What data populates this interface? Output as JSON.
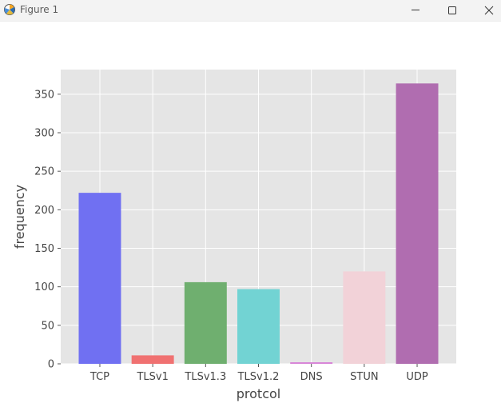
{
  "window": {
    "title": "Figure 1",
    "icon": "matplotlib-icon",
    "controls": [
      "minimize-icon",
      "maximize-icon",
      "close-icon"
    ]
  },
  "chart_data": {
    "type": "bar",
    "categories": [
      "TCP",
      "TLSv1",
      "TLSv1.3",
      "TLSv1.2",
      "DNS",
      "STUN",
      "UDP"
    ],
    "values": [
      222,
      11,
      106,
      97,
      2,
      120,
      364
    ],
    "colors": [
      "#7070f2",
      "#f07171",
      "#6faf6f",
      "#72d3d3",
      "#d884d8",
      "#f2d2d8",
      "#b06db0"
    ],
    "xlabel": "protcol",
    "ylabel": "frequency",
    "ylim": [
      0,
      382
    ],
    "yticks": [
      0,
      50,
      100,
      150,
      200,
      250,
      300,
      350
    ],
    "grid": true,
    "style": "ggplot",
    "background": "#e5e5e5"
  }
}
